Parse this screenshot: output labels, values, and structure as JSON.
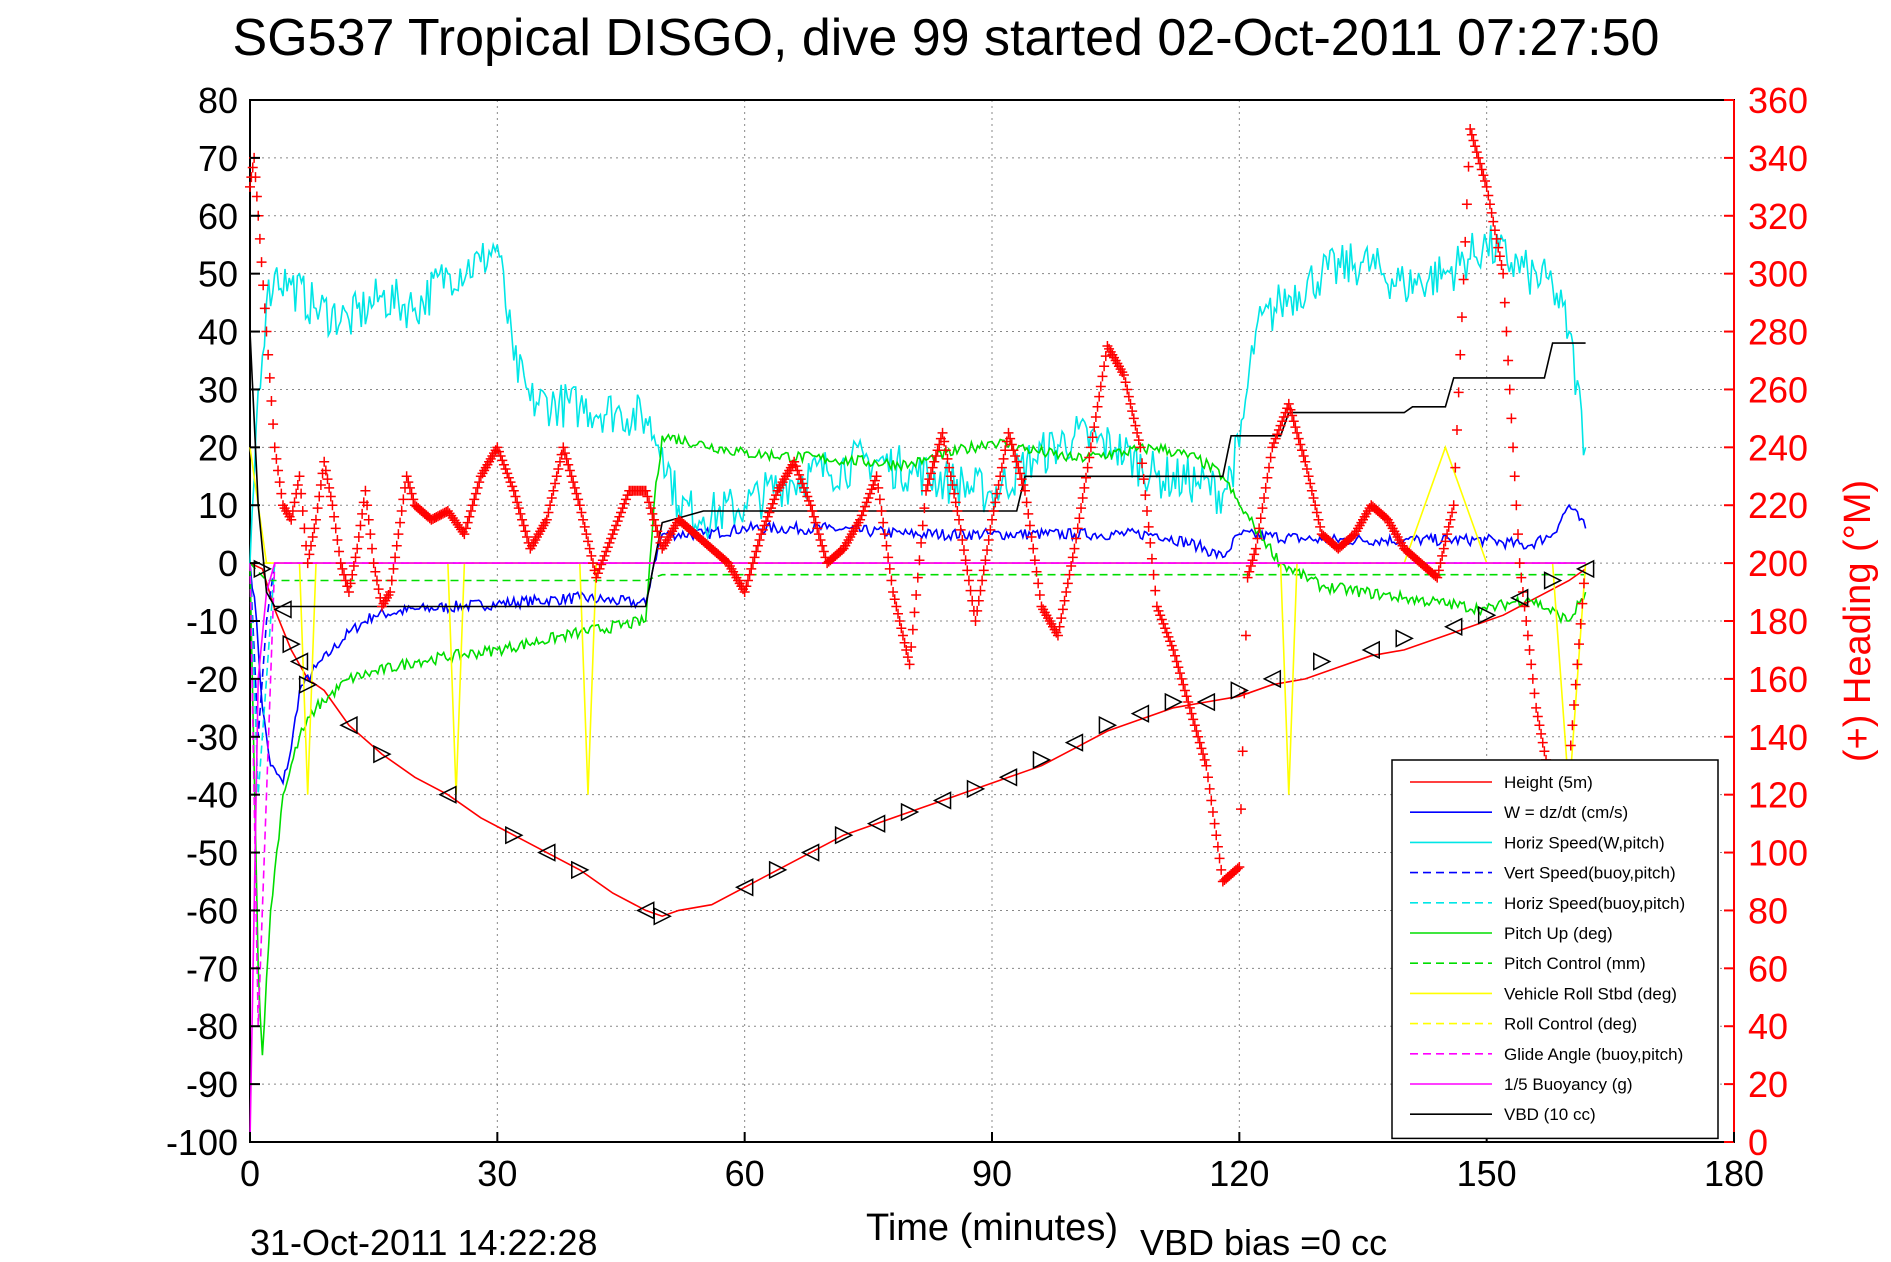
{
  "chart_data": {
    "type": "line",
    "title": "SG537 Tropical DISGO, dive 99 started 02-Oct-2011 07:27:50",
    "xlabel": "Time (minutes)",
    "ylabel": "",
    "y2label": "(+) Heading (°M)",
    "footer_left": "31-Oct-2011 14:22:28",
    "footer_right": "VBD bias =0 cc",
    "xlim": [
      0,
      180
    ],
    "ylim": [
      -100,
      80
    ],
    "y2lim": [
      0,
      360
    ],
    "xticks": [
      0,
      30,
      60,
      90,
      120,
      150,
      180
    ],
    "yticks": [
      80,
      70,
      60,
      50,
      40,
      30,
      20,
      10,
      0,
      -10,
      -20,
      -30,
      -40,
      -50,
      -60,
      -70,
      -80,
      -90,
      -100
    ],
    "y2ticks": [
      360,
      340,
      320,
      300,
      280,
      260,
      240,
      220,
      200,
      180,
      160,
      140,
      120,
      100,
      80,
      60,
      40,
      20,
      0
    ],
    "grid": true,
    "legend_position": "bottom-right",
    "colors": {
      "axis_left": "#000000",
      "axis_right": "#ff0000"
    },
    "series": [
      {
        "name": "Height (5m)",
        "color": "#ff0000",
        "style": "solid",
        "axis": "left",
        "x": [
          0,
          1.5,
          3,
          5,
          7,
          9,
          12,
          16,
          20,
          24,
          28,
          32,
          36,
          40,
          44,
          48,
          50,
          52,
          56,
          60,
          64,
          68,
          72,
          76,
          80,
          84,
          88,
          92,
          96,
          100,
          104,
          108,
          112,
          116,
          120,
          124,
          128,
          132,
          136,
          140,
          144,
          148,
          152,
          156,
          160,
          162
        ],
        "y": [
          0,
          -1,
          -8,
          -15,
          -20,
          -22,
          -28,
          -33,
          -37,
          -40,
          -44,
          -47,
          -50,
          -53,
          -57,
          -60,
          -61,
          -60,
          -59,
          -56,
          -53,
          -50,
          -47,
          -45,
          -43,
          -41,
          -39,
          -37,
          -35,
          -32,
          -29,
          -27,
          -25,
          -24,
          -23,
          -21,
          -20,
          -18,
          -16,
          -15,
          -13,
          -11,
          -9,
          -6,
          -3,
          -1
        ]
      },
      {
        "name": "W = dz/dt (cm/s)",
        "color": "#0000ff",
        "style": "solid",
        "axis": "left",
        "noise": 1.0,
        "x": [
          0,
          0.8,
          1.5,
          2.5,
          4,
          5,
          6,
          8,
          10,
          12,
          15,
          20,
          30,
          40,
          48,
          49,
          50,
          55,
          60,
          70,
          80,
          90,
          100,
          110,
          115,
          118,
          120,
          130,
          140,
          150,
          155,
          158,
          160,
          162
        ],
        "y": [
          0,
          -10,
          -25,
          -35,
          -38,
          -32,
          -22,
          -18,
          -15,
          -12,
          -9,
          -8,
          -7,
          -6,
          -7,
          0,
          5,
          5,
          6,
          6,
          5,
          5,
          5,
          5,
          3,
          1,
          5,
          4,
          4,
          4,
          3,
          5,
          10,
          6
        ]
      },
      {
        "name": "Horiz Speed(W,pitch)",
        "color": "#00e6e6",
        "style": "solid",
        "axis": "left",
        "noise": 4.0,
        "x": [
          0,
          1,
          2,
          3,
          5,
          8,
          12,
          16,
          20,
          24,
          28,
          30,
          32,
          34,
          40,
          45,
          48,
          50,
          52,
          55,
          60,
          65,
          70,
          75,
          80,
          85,
          90,
          95,
          100,
          105,
          110,
          115,
          118,
          120,
          122,
          125,
          130,
          135,
          140,
          145,
          150,
          155,
          158,
          160,
          162
        ],
        "y": [
          0,
          30,
          45,
          50,
          48,
          44,
          42,
          46,
          44,
          50,
          52,
          55,
          35,
          28,
          27,
          26,
          25,
          20,
          10,
          8,
          10,
          14,
          16,
          18,
          16,
          14,
          12,
          18,
          22,
          20,
          15,
          14,
          12,
          20,
          40,
          45,
          50,
          52,
          48,
          50,
          55,
          50,
          48,
          40,
          20
        ]
      },
      {
        "name": "Vert Speed(buoy,pitch)",
        "color": "#0000ff",
        "style": "dashed",
        "axis": "left",
        "x": [
          0,
          1,
          2,
          3,
          162
        ],
        "y": [
          0,
          -30,
          -10,
          0,
          0
        ]
      },
      {
        "name": "Horiz Speed(buoy,pitch)",
        "color": "#00e6e6",
        "style": "dashed",
        "axis": "left",
        "x": [
          0,
          1,
          2,
          3,
          162
        ],
        "y": [
          0,
          -40,
          -20,
          0,
          0
        ]
      },
      {
        "name": "Pitch Up (deg)",
        "color": "#00dd00",
        "style": "solid",
        "axis": "left",
        "noise": 1.0,
        "x": [
          0,
          1,
          1.5,
          2.5,
          4,
          6,
          8,
          12,
          20,
          30,
          40,
          48,
          49,
          50,
          60,
          70,
          80,
          90,
          100,
          110,
          115,
          118,
          120,
          125,
          130,
          140,
          150,
          155,
          160,
          162
        ],
        "y": [
          0,
          -70,
          -85,
          -60,
          -40,
          -30,
          -25,
          -20,
          -17,
          -15,
          -12,
          -10,
          10,
          22,
          19,
          18,
          17,
          21,
          18,
          20,
          18,
          15,
          10,
          0,
          -4,
          -6,
          -8,
          -6,
          -10,
          -5
        ]
      },
      {
        "name": "Pitch Control (mm)",
        "color": "#00dd00",
        "style": "dashed",
        "axis": "left",
        "x": [
          0,
          2,
          48,
          50,
          162
        ],
        "y": [
          0,
          -3,
          -3,
          -2,
          -2
        ]
      },
      {
        "name": "Vehicle Roll Stbd (deg)",
        "color": "#ffff00",
        "style": "solid",
        "axis": "left",
        "x": [
          0,
          1,
          2,
          3,
          6,
          7,
          8,
          20,
          24,
          25,
          26,
          40,
          41,
          42,
          60,
          70,
          80,
          90,
          100,
          110,
          125,
          126,
          127,
          140,
          145,
          150,
          158,
          160,
          162
        ],
        "y": [
          20,
          10,
          0,
          0,
          0,
          -40,
          0,
          0,
          0,
          -40,
          0,
          0,
          -40,
          0,
          0,
          0,
          0,
          0,
          0,
          0,
          0,
          -40,
          0,
          0,
          20,
          0,
          0,
          -40,
          0
        ]
      },
      {
        "name": "Roll Control (deg)",
        "color": "#ffff00",
        "style": "dashed",
        "axis": "left",
        "x": [
          0,
          162
        ],
        "y": [
          0,
          0
        ]
      },
      {
        "name": "Glide Angle (buoy,pitch)",
        "color": "#ff00ff",
        "style": "dashed",
        "axis": "left",
        "x": [
          0,
          1,
          2,
          3,
          162
        ],
        "y": [
          0,
          -80,
          -40,
          0,
          0
        ]
      },
      {
        "name": "1/5 Buoyancy (g)",
        "color": "#ff00ff",
        "style": "solid",
        "axis": "left",
        "x": [
          0,
          0.5,
          1,
          2,
          3,
          162
        ],
        "y": [
          -100,
          -60,
          -20,
          -5,
          0,
          0
        ]
      },
      {
        "name": "VBD (10 cc)",
        "color": "#000000",
        "style": "solid",
        "axis": "left",
        "x": [
          0,
          1,
          2,
          3,
          48,
          49,
          50,
          55,
          93,
          94,
          118,
          119,
          125,
          126,
          140,
          141,
          145,
          146,
          150,
          151,
          157,
          158,
          162
        ],
        "y": [
          40,
          10,
          -5,
          -7.5,
          -7.5,
          0,
          7,
          9,
          9,
          15,
          15,
          22,
          22,
          26,
          26,
          27,
          27,
          32,
          32,
          32,
          32,
          38,
          38
        ]
      }
    ],
    "heading_series": {
      "name": "(+) Heading (°M)",
      "color": "#ff0000",
      "marker": "+",
      "axis": "right",
      "x": [
        0,
        0.5,
        1,
        2,
        3,
        4,
        5,
        6,
        7,
        8,
        9,
        10,
        11,
        12,
        13,
        14,
        15,
        16,
        17,
        18,
        19,
        20,
        22,
        24,
        26,
        28,
        30,
        32,
        34,
        36,
        38,
        40,
        42,
        44,
        46,
        48,
        50,
        52,
        54,
        56,
        58,
        60,
        62,
        64,
        66,
        68,
        70,
        72,
        74,
        76,
        78,
        80,
        82,
        84,
        86,
        88,
        90,
        92,
        94,
        96,
        98,
        100,
        102,
        104,
        106,
        108,
        110,
        112,
        114,
        116,
        118,
        120,
        121,
        122,
        124,
        126,
        128,
        130,
        132,
        134,
        136,
        138,
        140,
        142,
        144,
        146,
        148,
        150,
        152,
        154,
        156,
        158,
        160,
        162
      ],
      "y": [
        330,
        340,
        320,
        280,
        240,
        220,
        215,
        230,
        200,
        215,
        235,
        220,
        200,
        190,
        205,
        225,
        200,
        185,
        190,
        210,
        230,
        220,
        215,
        218,
        210,
        230,
        240,
        225,
        205,
        215,
        240,
        220,
        195,
        210,
        225,
        225,
        205,
        215,
        210,
        205,
        200,
        190,
        210,
        225,
        235,
        220,
        200,
        205,
        215,
        230,
        190,
        165,
        225,
        245,
        215,
        180,
        215,
        245,
        225,
        185,
        175,
        205,
        240,
        275,
        265,
        240,
        185,
        170,
        150,
        130,
        90,
        95,
        195,
        205,
        240,
        255,
        235,
        210,
        205,
        210,
        220,
        215,
        205,
        200,
        195,
        220,
        350,
        330,
        300,
        200,
        150,
        120,
        130,
        200
      ]
    },
    "depth_markers": {
      "marker": "triangle",
      "x": [
        1.5,
        4,
        5,
        6,
        7,
        12,
        16,
        24,
        32,
        36,
        40,
        48,
        50,
        60,
        64,
        68,
        72,
        76,
        80,
        84,
        88,
        92,
        96,
        100,
        104,
        108,
        112,
        116,
        120,
        124,
        130,
        136,
        140,
        146,
        150,
        154,
        158,
        162
      ],
      "y": [
        -1,
        -8,
        -14,
        -17,
        -21,
        -28,
        -33,
        -40,
        -47,
        -50,
        -53,
        -60,
        -61,
        -56,
        -53,
        -50,
        -47,
        -45,
        -43,
        -41,
        -39,
        -37,
        -34,
        -31,
        -28,
        -26,
        -24,
        -24,
        -22,
        -20,
        -17,
        -15,
        -13,
        -11,
        -9,
        -6,
        -3,
        -1
      ]
    }
  }
}
